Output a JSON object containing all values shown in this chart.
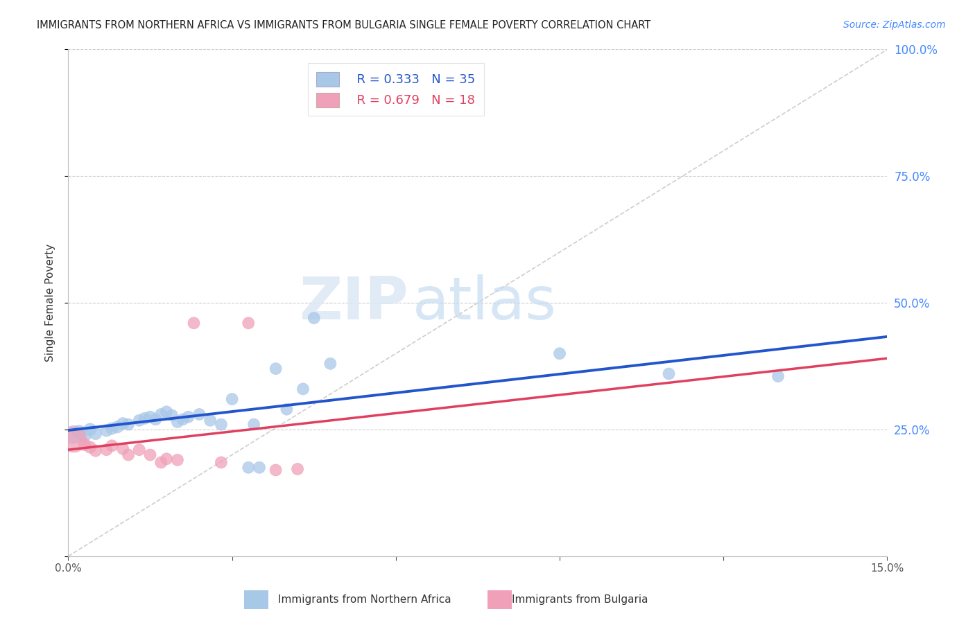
{
  "title": "IMMIGRANTS FROM NORTHERN AFRICA VS IMMIGRANTS FROM BULGARIA SINGLE FEMALE POVERTY CORRELATION CHART",
  "source": "Source: ZipAtlas.com",
  "ylabel": "Single Female Poverty",
  "y_ticks": [
    0.0,
    0.25,
    0.5,
    0.75,
    1.0
  ],
  "y_tick_labels_right": [
    "",
    "25.0%",
    "50.0%",
    "75.0%",
    "100.0%"
  ],
  "x_range": [
    0.0,
    0.15
  ],
  "y_range": [
    0.0,
    1.0
  ],
  "legend_blue_r": "R = 0.333",
  "legend_blue_n": "N = 35",
  "legend_pink_r": "R = 0.679",
  "legend_pink_n": "N = 18",
  "blue_label": "Immigrants from Northern Africa",
  "pink_label": "Immigrants from Bulgaria",
  "blue_color": "#a8c8e8",
  "pink_color": "#f0a0b8",
  "blue_line_color": "#2255cc",
  "pink_line_color": "#e04060",
  "diagonal_color": "#c8c8c8",
  "background": "#ffffff",
  "watermark_zip": "ZIP",
  "watermark_atlas": "atlas",
  "blue_points": [
    [
      0.001,
      0.24
    ],
    [
      0.002,
      0.245
    ],
    [
      0.003,
      0.238
    ],
    [
      0.004,
      0.25
    ],
    [
      0.005,
      0.242
    ],
    [
      0.007,
      0.248
    ],
    [
      0.008,
      0.252
    ],
    [
      0.009,
      0.255
    ],
    [
      0.01,
      0.262
    ],
    [
      0.011,
      0.26
    ],
    [
      0.013,
      0.268
    ],
    [
      0.014,
      0.272
    ],
    [
      0.015,
      0.275
    ],
    [
      0.016,
      0.27
    ],
    [
      0.017,
      0.28
    ],
    [
      0.018,
      0.285
    ],
    [
      0.019,
      0.278
    ],
    [
      0.02,
      0.265
    ],
    [
      0.021,
      0.27
    ],
    [
      0.022,
      0.275
    ],
    [
      0.024,
      0.28
    ],
    [
      0.026,
      0.268
    ],
    [
      0.028,
      0.26
    ],
    [
      0.03,
      0.31
    ],
    [
      0.033,
      0.175
    ],
    [
      0.034,
      0.26
    ],
    [
      0.035,
      0.175
    ],
    [
      0.038,
      0.37
    ],
    [
      0.04,
      0.29
    ],
    [
      0.043,
      0.33
    ],
    [
      0.045,
      0.47
    ],
    [
      0.048,
      0.38
    ],
    [
      0.09,
      0.4
    ],
    [
      0.11,
      0.36
    ],
    [
      0.13,
      0.355
    ]
  ],
  "pink_points": [
    [
      0.001,
      0.23
    ],
    [
      0.003,
      0.22
    ],
    [
      0.004,
      0.215
    ],
    [
      0.005,
      0.208
    ],
    [
      0.007,
      0.21
    ],
    [
      0.008,
      0.218
    ],
    [
      0.01,
      0.212
    ],
    [
      0.011,
      0.2
    ],
    [
      0.013,
      0.21
    ],
    [
      0.015,
      0.2
    ],
    [
      0.017,
      0.185
    ],
    [
      0.018,
      0.192
    ],
    [
      0.02,
      0.19
    ],
    [
      0.023,
      0.46
    ],
    [
      0.028,
      0.185
    ],
    [
      0.033,
      0.46
    ],
    [
      0.038,
      0.17
    ],
    [
      0.042,
      0.172
    ]
  ],
  "blue_sizes": [
    350,
    200,
    180,
    170,
    165,
    160,
    155,
    155,
    150,
    150,
    150,
    150,
    150,
    150,
    150,
    150,
    150,
    150,
    150,
    150,
    150,
    150,
    150,
    150,
    150,
    150,
    150,
    150,
    150,
    150,
    150,
    150,
    150,
    150,
    150
  ],
  "pink_sizes": [
    700,
    160,
    155,
    150,
    150,
    150,
    150,
    150,
    150,
    150,
    150,
    150,
    150,
    150,
    150,
    150,
    150,
    150
  ]
}
